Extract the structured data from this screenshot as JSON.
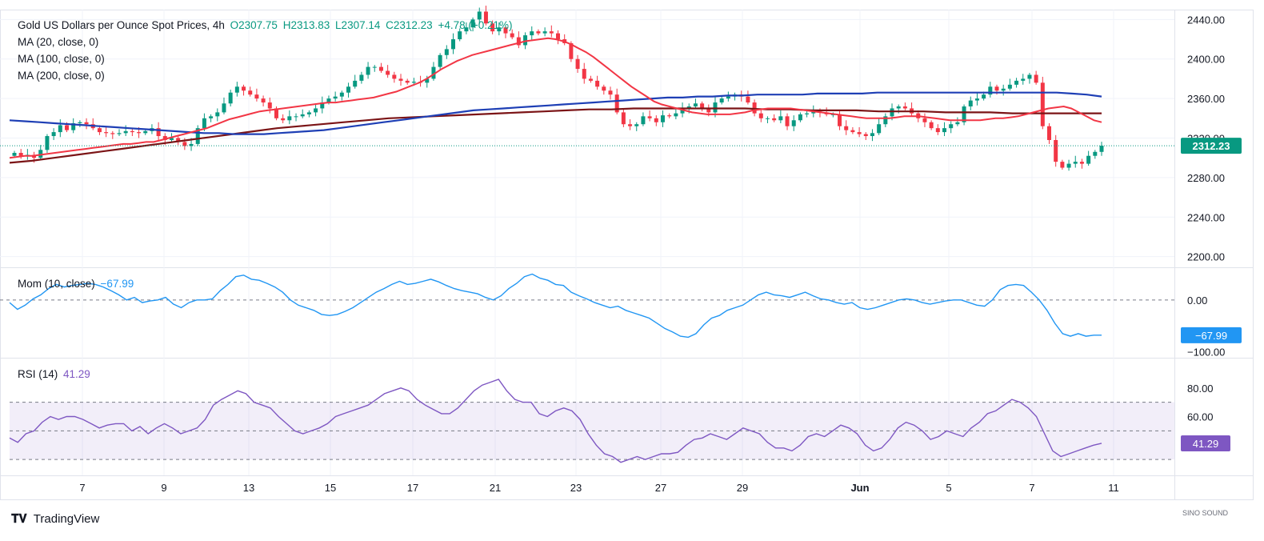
{
  "header": {
    "symbol": "Gold US Dollars per Ounce Spot Prices, 4h",
    "o": "O2307.75",
    "h": "H2313.83",
    "l": "L2307.14",
    "c": "C2312.23",
    "chg": "+4.78 (+0.21%)"
  },
  "indicators": {
    "ma20": "MA (20, close, 0)",
    "ma100": "MA (100, close, 0)",
    "ma200": "MA (200, close, 0)",
    "mom_label": "Mom (10, close)",
    "mom_value": "−67.99",
    "rsi_label": "RSI (14)",
    "rsi_value": "41.29"
  },
  "brand": "TradingView",
  "watermark": "SINO SOUND",
  "colors": {
    "up": "#089981",
    "down": "#f23645",
    "ma20": "#f23645",
    "ma100": "#1e3fb5",
    "ma200": "#7b1416",
    "mom": "#2196f3",
    "rsi": "#7e57c2",
    "rsi_band": "#7e57c21a",
    "grid": "#f0f3fa"
  },
  "chart_data": [
    {
      "type": "candlestick",
      "ylim": [
        2190,
        2450
      ],
      "y_ticks": [
        "2440.00",
        "2400.00",
        "2360.00",
        "2320.00",
        "2280.00",
        "2240.00",
        "2200.00"
      ],
      "y_tick_values": [
        2440,
        2400,
        2360,
        2320,
        2280,
        2240,
        2200
      ],
      "x_ticks": [
        "7",
        "9",
        "13",
        "15",
        "17",
        "21",
        "23",
        "27",
        "29",
        "Jun",
        "5",
        "7",
        "11"
      ],
      "last_price": 2312.23,
      "last_price_label": "2312.23",
      "close": [
        2305,
        2302,
        2303,
        2300,
        2308,
        2322,
        2326,
        2333,
        2328,
        2335,
        2336,
        2334,
        2330,
        2326,
        2325,
        2324,
        2325,
        2327,
        2326,
        2325,
        2327,
        2330,
        2322,
        2318,
        2320,
        2316,
        2312,
        2314,
        2330,
        2340,
        2342,
        2346,
        2355,
        2366,
        2372,
        2368,
        2364,
        2360,
        2356,
        2350,
        2340,
        2338,
        2342,
        2342,
        2344,
        2346,
        2350,
        2356,
        2360,
        2362,
        2366,
        2372,
        2378,
        2384,
        2392,
        2392,
        2388,
        2384,
        2380,
        2378,
        2376,
        2377,
        2376,
        2380,
        2392,
        2404,
        2410,
        2420,
        2428,
        2432,
        2440,
        2448,
        2436,
        2428,
        2432,
        2426,
        2422,
        2414,
        2424,
        2428,
        2426,
        2428,
        2426,
        2420,
        2416,
        2400,
        2390,
        2380,
        2378,
        2372,
        2368,
        2364,
        2346,
        2334,
        2332,
        2334,
        2342,
        2340,
        2336,
        2343,
        2342,
        2345,
        2350,
        2352,
        2355,
        2350,
        2346,
        2356,
        2360,
        2362,
        2364,
        2362,
        2356,
        2345,
        2340,
        2340,
        2338,
        2342,
        2332,
        2338,
        2344,
        2345,
        2347,
        2346,
        2344,
        2344,
        2332,
        2328,
        2326,
        2324,
        2322,
        2325,
        2334,
        2342,
        2350,
        2352,
        2350,
        2345,
        2340,
        2336,
        2330,
        2326,
        2330,
        2334,
        2336,
        2352,
        2358,
        2360,
        2364,
        2372,
        2368,
        2370,
        2374,
        2378,
        2380,
        2384,
        2376,
        2332,
        2318,
        2296,
        2290,
        2294,
        2296,
        2294,
        2302,
        2306,
        2312.23
      ],
      "ma20": [
        2300,
        2301,
        2302,
        2302,
        2303,
        2304,
        2305,
        2306,
        2307,
        2308,
        2309,
        2310,
        2311,
        2312,
        2313,
        2314,
        2314,
        2315,
        2316,
        2316,
        2318,
        2320,
        2322,
        2324,
        2326,
        2328,
        2330,
        2333,
        2336,
        2339,
        2341,
        2343,
        2345,
        2347,
        2348,
        2349,
        2350,
        2351,
        2352,
        2353,
        2354,
        2355,
        2356,
        2356,
        2357,
        2358,
        2359,
        2360,
        2361,
        2363,
        2365,
        2367,
        2370,
        2373,
        2376,
        2380,
        2385,
        2390,
        2394,
        2398,
        2401,
        2404,
        2406,
        2408,
        2410,
        2412,
        2414,
        2416,
        2418,
        2419,
        2420,
        2421,
        2420,
        2418,
        2415,
        2411,
        2407,
        2402,
        2396,
        2390,
        2384,
        2378,
        2372,
        2367,
        2362,
        2357,
        2354,
        2352,
        2350,
        2348,
        2346,
        2345,
        2344,
        2344,
        2344,
        2344,
        2345,
        2346,
        2348,
        2349,
        2350,
        2350,
        2350,
        2350,
        2349,
        2348,
        2347,
        2346,
        2345,
        2344,
        2343,
        2342,
        2341,
        2340,
        2340,
        2340,
        2340,
        2341,
        2342,
        2342,
        2342,
        2341,
        2340,
        2339,
        2338,
        2338,
        2338,
        2338,
        2338,
        2339,
        2340,
        2340,
        2341,
        2342,
        2344,
        2346,
        2348,
        2350,
        2351,
        2352,
        2350,
        2346,
        2342,
        2338,
        2336
      ],
      "ma100": [
        2338,
        2337,
        2336,
        2335,
        2334,
        2333,
        2332,
        2331,
        2330,
        2329,
        2328,
        2327,
        2326,
        2325,
        2325,
        2324,
        2324,
        2324,
        2325,
        2326,
        2327,
        2328,
        2330,
        2332,
        2334,
        2336,
        2338,
        2340,
        2342,
        2344,
        2346,
        2348,
        2349,
        2350,
        2351,
        2352,
        2353,
        2354,
        2355,
        2356,
        2357,
        2358,
        2359,
        2360,
        2361,
        2361,
        2362,
        2362,
        2363,
        2363,
        2364,
        2364,
        2364,
        2364,
        2365,
        2365,
        2365,
        2365,
        2366,
        2366,
        2366,
        2366,
        2366,
        2366,
        2366,
        2366,
        2366,
        2366,
        2366,
        2366,
        2366,
        2365,
        2364,
        2362
      ],
      "ma200": [
        2295,
        2297,
        2300,
        2303,
        2306,
        2309,
        2312,
        2315,
        2318,
        2321,
        2324,
        2327,
        2330,
        2332,
        2334,
        2336,
        2338,
        2340,
        2341,
        2342,
        2343,
        2344,
        2345,
        2346,
        2347,
        2348,
        2349,
        2349,
        2350,
        2350,
        2350,
        2350,
        2350,
        2350,
        2349,
        2349,
        2348,
        2348,
        2348,
        2347,
        2347,
        2347,
        2346,
        2346,
        2346,
        2345,
        2345,
        2345,
        2345,
        2345
      ],
      "y_ticks_note": "price axis"
    },
    {
      "type": "line",
      "name": "Mom (10, close)",
      "ylim": [
        -110,
        60
      ],
      "y_ticks": [
        "0.00",
        "−100.00"
      ],
      "y_tick_values": [
        0,
        -100
      ],
      "last_label": "−67.99",
      "values": [
        -5,
        -18,
        -10,
        2,
        10,
        22,
        30,
        25,
        28,
        30,
        32,
        30,
        25,
        18,
        10,
        0,
        5,
        -5,
        -2,
        0,
        5,
        -8,
        -15,
        -5,
        0,
        0,
        2,
        18,
        30,
        45,
        48,
        40,
        38,
        32,
        25,
        15,
        0,
        -10,
        -15,
        -20,
        -28,
        -30,
        -28,
        -22,
        -15,
        -5,
        5,
        15,
        22,
        30,
        36,
        30,
        32,
        36,
        40,
        35,
        28,
        22,
        18,
        15,
        12,
        5,
        0,
        8,
        22,
        32,
        45,
        50,
        42,
        38,
        30,
        28,
        15,
        8,
        2,
        -5,
        -10,
        -15,
        -12,
        -20,
        -25,
        -30,
        -35,
        -45,
        -55,
        -62,
        -70,
        -72,
        -65,
        -48,
        -35,
        -30,
        -20,
        -15,
        -10,
        0,
        10,
        15,
        10,
        8,
        5,
        10,
        15,
        8,
        2,
        0,
        -5,
        -8,
        -5,
        -15,
        -18,
        -15,
        -10,
        -5,
        0,
        2,
        0,
        -5,
        -8,
        -5,
        -2,
        0,
        0,
        -5,
        -10,
        -12,
        0,
        20,
        28,
        30,
        28,
        15,
        0,
        -20,
        -45,
        -65,
        -70,
        -65,
        -70,
        -68,
        -67.99
      ]
    },
    {
      "type": "line",
      "name": "RSI (14)",
      "ylim": [
        20,
        100
      ],
      "y_ticks": [
        "80.00",
        "60.00"
      ],
      "y_tick_values": [
        80,
        60
      ],
      "band": [
        30,
        70
      ],
      "mid": 50,
      "last_label": "41.29",
      "values": [
        45,
        42,
        48,
        50,
        56,
        60,
        58,
        60,
        60,
        58,
        55,
        52,
        54,
        55,
        55,
        50,
        53,
        48,
        52,
        55,
        52,
        48,
        50,
        52,
        58,
        68,
        72,
        75,
        78,
        76,
        70,
        68,
        66,
        60,
        55,
        50,
        48,
        50,
        52,
        55,
        60,
        62,
        64,
        66,
        68,
        72,
        76,
        78,
        80,
        78,
        72,
        68,
        65,
        62,
        62,
        66,
        72,
        78,
        82,
        84,
        86,
        78,
        72,
        70,
        70,
        62,
        60,
        64,
        66,
        64,
        58,
        48,
        40,
        34,
        32,
        28,
        30,
        32,
        30,
        32,
        34,
        34,
        35,
        40,
        44,
        45,
        48,
        46,
        44,
        48,
        52,
        50,
        48,
        42,
        38,
        38,
        36,
        40,
        46,
        48,
        46,
        50,
        54,
        52,
        48,
        40,
        36,
        38,
        44,
        52,
        56,
        54,
        50,
        44,
        46,
        50,
        48,
        46,
        52,
        56,
        62,
        64,
        68,
        72,
        70,
        66,
        60,
        48,
        36,
        32,
        34,
        36,
        38,
        40,
        41.29
      ]
    }
  ]
}
